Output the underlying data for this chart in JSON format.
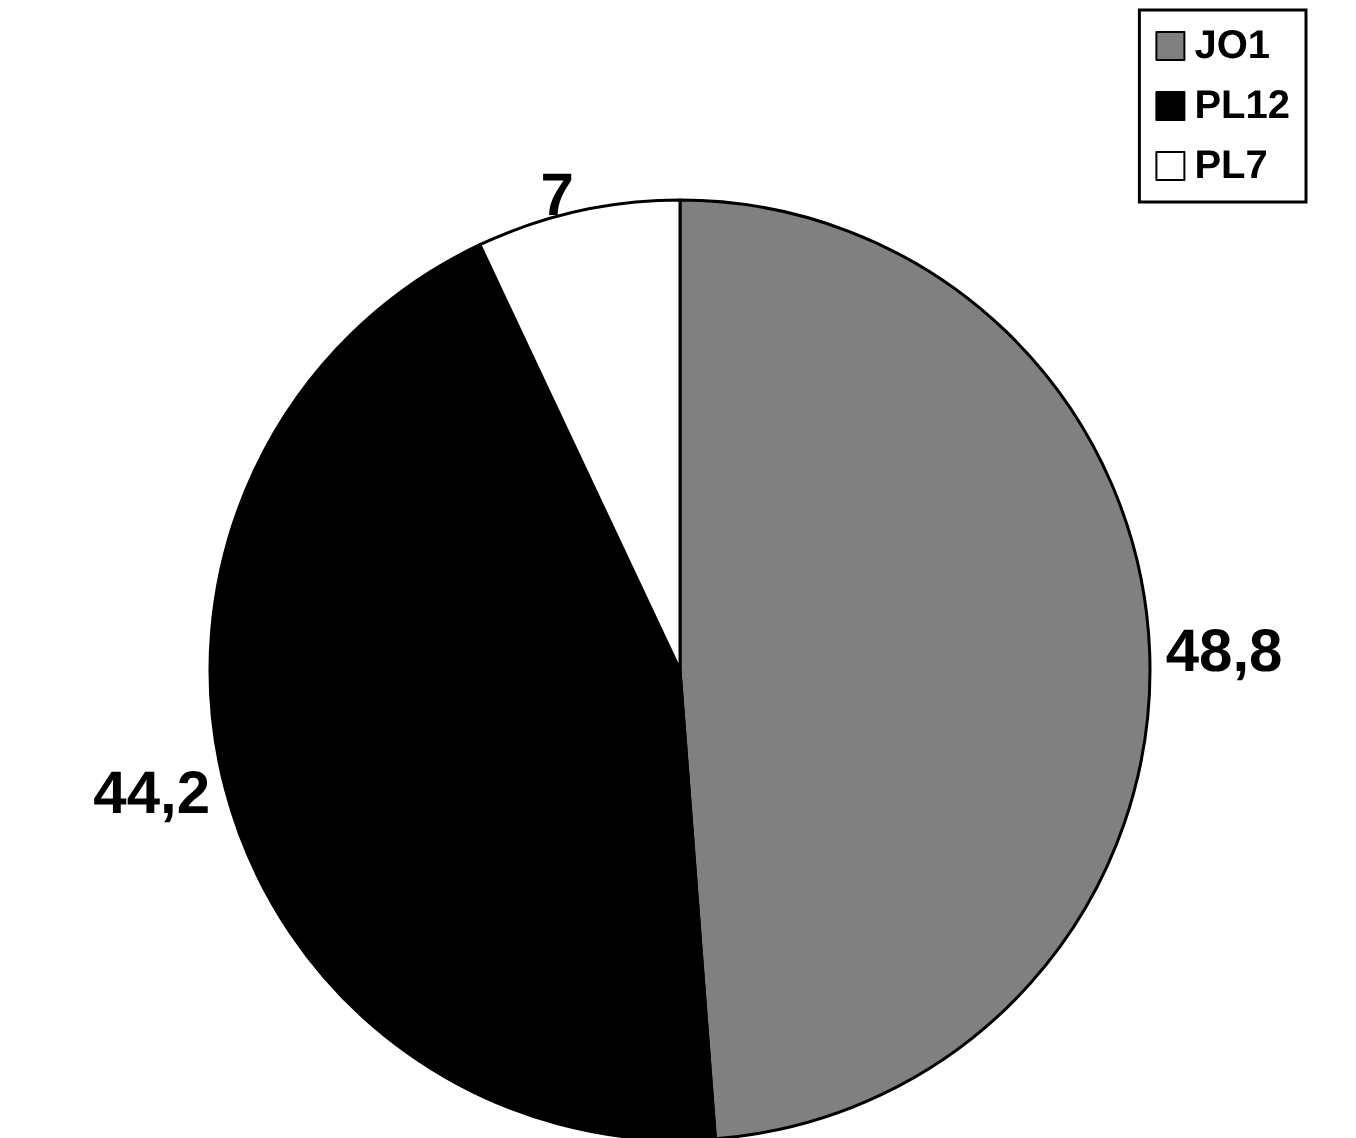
{
  "chart_data": {
    "type": "pie",
    "categories": [
      "JO1",
      "PL12",
      "PL7"
    ],
    "values": [
      48.8,
      44.2,
      7
    ],
    "colors": [
      "#808080",
      "#000000",
      "#ffffff"
    ],
    "value_labels": [
      "48,8",
      "44,2",
      "7"
    ],
    "legend": "top right"
  }
}
